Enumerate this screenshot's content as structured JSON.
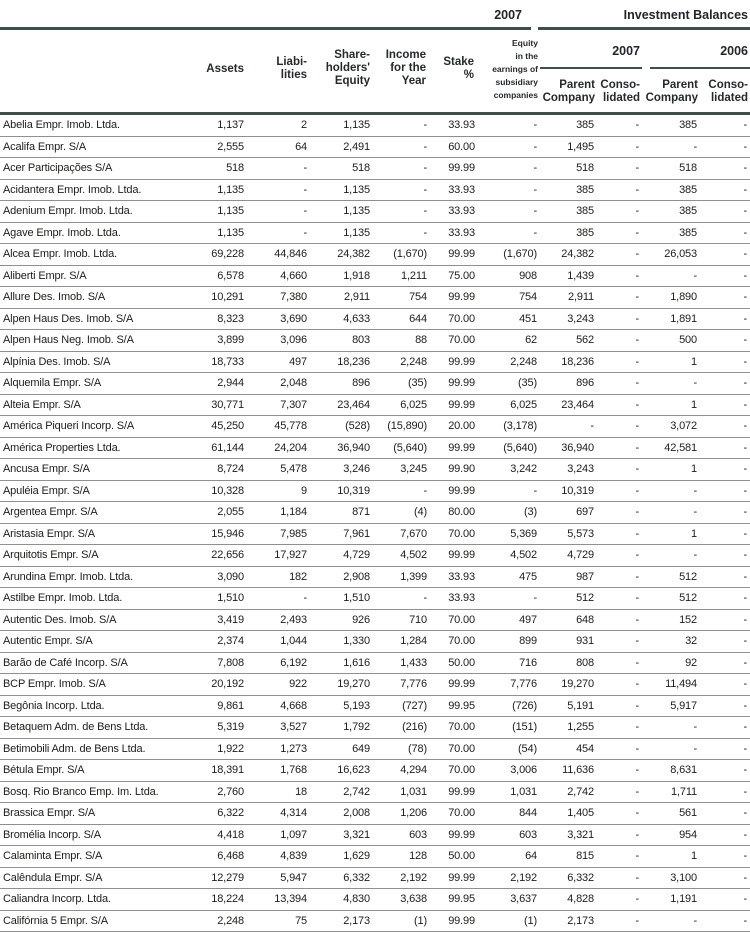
{
  "header": {
    "top": {
      "year": "2007",
      "investment_balances": "Investment Balances"
    },
    "columns": {
      "assets": "Assets",
      "liabilities": "Liabi-\nlities",
      "shareholders_equity": "Share-\nholders'\nEquity",
      "income_for_year": "Income\nfor the\nYear",
      "stake_pct": "Stake\n%",
      "equity_earnings": "Equity\nin the\nearnings of\nsubsidiary\ncompanies",
      "parent_company": "Parent\nCompany",
      "consolidated": "Conso-\nlidated"
    },
    "groups": {
      "year_2007": "2007",
      "year_2006": "2006"
    }
  },
  "colors": {
    "rule_dark": "#3e4e49",
    "row_separator": "#8f908e",
    "text": "#1d1d1b"
  },
  "table": {
    "value_columns": [
      "Assets",
      "Liabilities",
      "Shareholders' Equity",
      "Income for the Year",
      "Stake %",
      "Equity in the earnings of subsidiary companies",
      "Parent Company 2007",
      "Consolidated 2007",
      "Parent Company 2006",
      "Consolidated 2006"
    ],
    "rows": [
      {
        "name": "Abelia Empr. Imob. Ltda.",
        "values": [
          "1,137",
          "2",
          "1,135",
          "-",
          "33.93",
          "-",
          "385",
          "-",
          "385",
          "-"
        ]
      },
      {
        "name": "Acalifa Empr. S/A",
        "values": [
          "2,555",
          "64",
          "2,491",
          "-",
          "60.00",
          "-",
          "1,495",
          "-",
          "-",
          "-"
        ]
      },
      {
        "name": "Acer Participações S/A",
        "values": [
          "518",
          "-",
          "518",
          "-",
          "99.99",
          "-",
          "518",
          "-",
          "518",
          "-"
        ]
      },
      {
        "name": "Acidantera Empr. Imob. Ltda.",
        "values": [
          "1,135",
          "-",
          "1,135",
          "-",
          "33.93",
          "-",
          "385",
          "-",
          "385",
          "-"
        ]
      },
      {
        "name": "Adenium Empr. Imob. Ltda.",
        "values": [
          "1,135",
          "-",
          "1,135",
          "-",
          "33.93",
          "-",
          "385",
          "-",
          "385",
          "-"
        ]
      },
      {
        "name": "Agave Empr. Imob. Ltda.",
        "values": [
          "1,135",
          "-",
          "1,135",
          "-",
          "33.93",
          "-",
          "385",
          "-",
          "385",
          "-"
        ]
      },
      {
        "name": "Alcea Empr. Imob. Ltda.",
        "values": [
          "69,228",
          "44,846",
          "24,382",
          "(1,670)",
          "99.99",
          "(1,670)",
          "24,382",
          "-",
          "26,053",
          "-"
        ]
      },
      {
        "name": "Aliberti Empr. S/A",
        "values": [
          "6,578",
          "4,660",
          "1,918",
          "1,211",
          "75.00",
          "908",
          "1,439",
          "-",
          "-",
          "-"
        ]
      },
      {
        "name": "Allure Des. Imob. S/A",
        "values": [
          "10,291",
          "7,380",
          "2,911",
          "754",
          "99.99",
          "754",
          "2,911",
          "-",
          "1,890",
          "-"
        ]
      },
      {
        "name": "Alpen Haus Des. Imob. S/A",
        "values": [
          "8,323",
          "3,690",
          "4,633",
          "644",
          "70.00",
          "451",
          "3,243",
          "-",
          "1,891",
          "-"
        ]
      },
      {
        "name": "Alpen Haus Neg. Imob. S/A",
        "values": [
          "3,899",
          "3,096",
          "803",
          "88",
          "70.00",
          "62",
          "562",
          "-",
          "500",
          "-"
        ]
      },
      {
        "name": "Alpínia Des. Imob. S/A",
        "values": [
          "18,733",
          "497",
          "18,236",
          "2,248",
          "99.99",
          "2,248",
          "18,236",
          "-",
          "1",
          "-"
        ]
      },
      {
        "name": "Alquemila Empr. S/A",
        "values": [
          "2,944",
          "2,048",
          "896",
          "(35)",
          "99.99",
          "(35)",
          "896",
          "-",
          "-",
          "-"
        ]
      },
      {
        "name": "Alteia Empr. S/A",
        "values": [
          "30,771",
          "7,307",
          "23,464",
          "6,025",
          "99.99",
          "6,025",
          "23,464",
          "-",
          "1",
          "-"
        ]
      },
      {
        "name": "América Piqueri Incorp. S/A",
        "values": [
          "45,250",
          "45,778",
          "(528)",
          "(15,890)",
          "20.00",
          "(3,178)",
          "-",
          "-",
          "3,072",
          "-"
        ]
      },
      {
        "name": "América Properties Ltda.",
        "values": [
          "61,144",
          "24,204",
          "36,940",
          "(5,640)",
          "99.99",
          "(5,640)",
          "36,940",
          "-",
          "42,581",
          "-"
        ]
      },
      {
        "name": "Ancusa Empr. S/A",
        "values": [
          "8,724",
          "5,478",
          "3,246",
          "3,245",
          "99.90",
          "3,242",
          "3,243",
          "-",
          "1",
          "-"
        ]
      },
      {
        "name": "Apuléia Empr. S/A",
        "values": [
          "10,328",
          "9",
          "10,319",
          "-",
          "99.99",
          "-",
          "10,319",
          "-",
          "-",
          "-"
        ]
      },
      {
        "name": "Argentea Empr. S/A",
        "values": [
          "2,055",
          "1,184",
          "871",
          "(4)",
          "80.00",
          "(3)",
          "697",
          "-",
          "-",
          "-"
        ]
      },
      {
        "name": "Aristasia Empr. S/A",
        "values": [
          "15,946",
          "7,985",
          "7,961",
          "7,670",
          "70.00",
          "5,369",
          "5,573",
          "-",
          "1",
          "-"
        ]
      },
      {
        "name": "Arquitotis Empr. S/A",
        "values": [
          "22,656",
          "17,927",
          "4,729",
          "4,502",
          "99.99",
          "4,502",
          "4,729",
          "-",
          "-",
          "-"
        ]
      },
      {
        "name": "Arundina Empr. Imob. Ltda.",
        "values": [
          "3,090",
          "182",
          "2,908",
          "1,399",
          "33.93",
          "475",
          "987",
          "-",
          "512",
          "-"
        ]
      },
      {
        "name": "Astilbe Empr. Imob. Ltda.",
        "values": [
          "1,510",
          "-",
          "1,510",
          "-",
          "33.93",
          "-",
          "512",
          "-",
          "512",
          "-"
        ]
      },
      {
        "name": "Autentic Des. Imob. S/A",
        "values": [
          "3,419",
          "2,493",
          "926",
          "710",
          "70.00",
          "497",
          "648",
          "-",
          "152",
          "-"
        ]
      },
      {
        "name": "Autentic Empr. S/A",
        "values": [
          "2,374",
          "1,044",
          "1,330",
          "1,284",
          "70.00",
          "899",
          "931",
          "-",
          "32",
          "-"
        ]
      },
      {
        "name": "Barão de Café Incorp. S/A",
        "values": [
          "7,808",
          "6,192",
          "1,616",
          "1,433",
          "50.00",
          "716",
          "808",
          "-",
          "92",
          "-"
        ]
      },
      {
        "name": "BCP Empr. Imob. S/A",
        "values": [
          "20,192",
          "922",
          "19,270",
          "7,776",
          "99.99",
          "7,776",
          "19,270",
          "-",
          "11,494",
          "-"
        ]
      },
      {
        "name": "Begônia Incorp. Ltda.",
        "values": [
          "9,861",
          "4,668",
          "5,193",
          "(727)",
          "99.95",
          "(726)",
          "5,191",
          "-",
          "5,917",
          "-"
        ]
      },
      {
        "name": "Betaquem Adm. de Bens Ltda.",
        "values": [
          "5,319",
          "3,527",
          "1,792",
          "(216)",
          "70.00",
          "(151)",
          "1,255",
          "-",
          "-",
          "-"
        ]
      },
      {
        "name": "Betimobili Adm. de Bens Ltda.",
        "values": [
          "1,922",
          "1,273",
          "649",
          "(78)",
          "70.00",
          "(54)",
          "454",
          "-",
          "-",
          "-"
        ]
      },
      {
        "name": "Bétula Empr. S/A",
        "values": [
          "18,391",
          "1,768",
          "16,623",
          "4,294",
          "70.00",
          "3,006",
          "11,636",
          "-",
          "8,631",
          "-"
        ]
      },
      {
        "name": "Bosq. Rio Branco Emp. Im. Ltda.",
        "values": [
          "2,760",
          "18",
          "2,742",
          "1,031",
          "99.99",
          "1,031",
          "2,742",
          "-",
          "1,711",
          "-"
        ]
      },
      {
        "name": "Brassica Empr. S/A",
        "values": [
          "6,322",
          "4,314",
          "2,008",
          "1,206",
          "70.00",
          "844",
          "1,405",
          "-",
          "561",
          "-"
        ]
      },
      {
        "name": "Bromélia Incorp. S/A",
        "values": [
          "4,418",
          "1,097",
          "3,321",
          "603",
          "99.99",
          "603",
          "3,321",
          "-",
          "954",
          "-"
        ]
      },
      {
        "name": "Calaminta Empr. S/A",
        "values": [
          "6,468",
          "4,839",
          "1,629",
          "128",
          "50.00",
          "64",
          "815",
          "-",
          "1",
          "-"
        ]
      },
      {
        "name": "Calêndula Empr. S/A",
        "values": [
          "12,279",
          "5,947",
          "6,332",
          "2,192",
          "99.99",
          "2,192",
          "6,332",
          "-",
          "3,100",
          "-"
        ]
      },
      {
        "name": "Caliandra Incorp. Ltda.",
        "values": [
          "18,224",
          "13,394",
          "4,830",
          "3,638",
          "99.95",
          "3,637",
          "4,828",
          "-",
          "1,191",
          "-"
        ]
      },
      {
        "name": "Califórnia 5 Empr. S/A",
        "values": [
          "2,248",
          "75",
          "2,173",
          "(1)",
          "99.99",
          "(1)",
          "2,173",
          "-",
          "-",
          "-"
        ]
      }
    ]
  }
}
